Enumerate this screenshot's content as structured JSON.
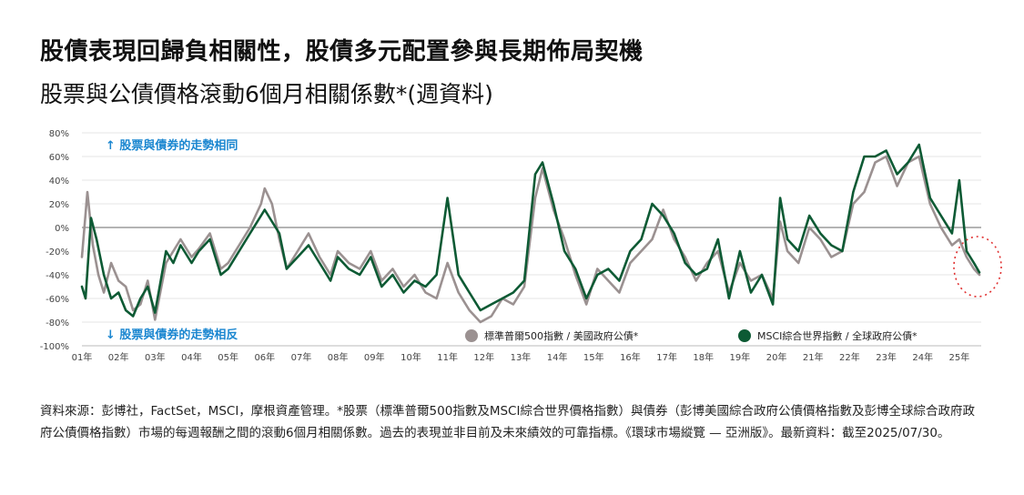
{
  "header": {
    "title": "股債表現回歸負相關性，股債多元配置參與長期佈局契機",
    "subtitle": "股票與公債價格滾動6個月相關係數*(週資料)"
  },
  "colors": {
    "sp500_series": "#9b9191",
    "msci_series": "#0d5a34",
    "up_note": "#1a86d0",
    "down_note": "#1a86d0",
    "highlight_circle": "#e03030",
    "zero_line": "#888888",
    "grid": "#e6e6e6"
  },
  "chart_data": {
    "type": "line",
    "y_tick_labels": [
      "80%",
      "60%",
      "40%",
      "20%",
      "0%",
      "-20%",
      "-40%",
      "-60%",
      "-80%",
      "-100%"
    ],
    "y_ticks": [
      80,
      60,
      40,
      20,
      0,
      -20,
      -40,
      -60,
      -80,
      -100
    ],
    "ylim": [
      -100,
      80
    ],
    "x_tick_labels": [
      "01年",
      "02年",
      "03年",
      "04年",
      "05年",
      "06年",
      "07年",
      "08年",
      "09年",
      "10年",
      "11年",
      "12年",
      "13年",
      "14年",
      "15年",
      "16年",
      "17年",
      "18年",
      "19年",
      "20年",
      "21年",
      "22年",
      "23年",
      "24年",
      "25年"
    ],
    "xlim": [
      2001,
      2025.6
    ],
    "grid": "horizontal",
    "legend_position": "bottom-right",
    "annotations": {
      "up": "↑ 股票與債券的走勢相同",
      "down": "↓ 股票與債券的走勢相反"
    },
    "series": [
      {
        "name": "標準普爾500指數 / 美國政府公債*",
        "x": [
          2001.0,
          2001.15,
          2001.3,
          2001.45,
          2001.6,
          2001.8,
          2002.0,
          2002.2,
          2002.4,
          2002.6,
          2002.8,
          2003.0,
          2003.3,
          2003.5,
          2003.7,
          2004.0,
          2004.2,
          2004.5,
          2004.8,
          2005.0,
          2005.3,
          2005.6,
          2005.9,
          2006.0,
          2006.2,
          2006.4,
          2006.6,
          2006.9,
          2007.2,
          2007.5,
          2007.8,
          2008.0,
          2008.3,
          2008.6,
          2008.9,
          2009.2,
          2009.5,
          2009.8,
          2010.1,
          2010.4,
          2010.7,
          2011.0,
          2011.3,
          2011.6,
          2011.9,
          2012.2,
          2012.5,
          2012.8,
          2013.1,
          2013.4,
          2013.6,
          2013.9,
          2014.2,
          2014.5,
          2014.8,
          2015.1,
          2015.4,
          2015.7,
          2016.0,
          2016.3,
          2016.6,
          2016.9,
          2017.2,
          2017.5,
          2017.8,
          2018.1,
          2018.4,
          2018.7,
          2019.0,
          2019.3,
          2019.6,
          2019.9,
          2020.1,
          2020.3,
          2020.6,
          2020.9,
          2021.2,
          2021.5,
          2021.8,
          2022.1,
          2022.4,
          2022.7,
          2023.0,
          2023.3,
          2023.6,
          2023.9,
          2024.2,
          2024.5,
          2024.8,
          2025.0,
          2025.2,
          2025.4,
          2025.55
        ],
        "values": [
          -25,
          30,
          -15,
          -40,
          -55,
          -30,
          -45,
          -50,
          -70,
          -65,
          -45,
          -78,
          -30,
          -20,
          -10,
          -25,
          -18,
          -5,
          -35,
          -30,
          -15,
          0,
          20,
          33,
          20,
          -10,
          -35,
          -20,
          -5,
          -25,
          -40,
          -20,
          -30,
          -35,
          -20,
          -45,
          -35,
          -50,
          -40,
          -55,
          -60,
          -30,
          -55,
          -70,
          -80,
          -75,
          -60,
          -65,
          -50,
          25,
          50,
          15,
          -10,
          -40,
          -65,
          -35,
          -45,
          -55,
          -30,
          -20,
          -10,
          15,
          -10,
          -25,
          -45,
          -30,
          -20,
          -55,
          -30,
          -45,
          -40,
          -60,
          5,
          -20,
          -30,
          0,
          -10,
          -25,
          -20,
          20,
          30,
          55,
          60,
          35,
          55,
          60,
          20,
          0,
          -15,
          -10,
          -25,
          -35,
          -40
        ]
      },
      {
        "name": "MSCI綜合世界指數 / 全球政府公債*",
        "x": [
          2001.0,
          2001.1,
          2001.25,
          2001.4,
          2001.6,
          2001.8,
          2002.0,
          2002.2,
          2002.4,
          2002.6,
          2002.8,
          2003.0,
          2003.3,
          2003.5,
          2003.7,
          2004.0,
          2004.2,
          2004.5,
          2004.8,
          2005.0,
          2005.3,
          2005.6,
          2005.9,
          2006.0,
          2006.2,
          2006.4,
          2006.6,
          2006.9,
          2007.2,
          2007.5,
          2007.8,
          2008.0,
          2008.3,
          2008.6,
          2008.9,
          2009.2,
          2009.5,
          2009.8,
          2010.1,
          2010.4,
          2010.7,
          2011.0,
          2011.3,
          2011.6,
          2011.9,
          2012.2,
          2012.5,
          2012.8,
          2013.1,
          2013.4,
          2013.6,
          2013.9,
          2014.2,
          2014.5,
          2014.8,
          2015.1,
          2015.4,
          2015.7,
          2016.0,
          2016.3,
          2016.6,
          2016.9,
          2017.2,
          2017.5,
          2017.8,
          2018.1,
          2018.4,
          2018.7,
          2019.0,
          2019.3,
          2019.6,
          2019.9,
          2020.1,
          2020.3,
          2020.6,
          2020.9,
          2021.2,
          2021.5,
          2021.8,
          2022.1,
          2022.4,
          2022.7,
          2023.0,
          2023.3,
          2023.6,
          2023.9,
          2024.2,
          2024.5,
          2024.8,
          2025.0,
          2025.2,
          2025.4,
          2025.55
        ],
        "values": [
          -50,
          -60,
          8,
          -10,
          -40,
          -60,
          -55,
          -70,
          -75,
          -60,
          -50,
          -72,
          -20,
          -30,
          -15,
          -30,
          -20,
          -10,
          -40,
          -35,
          -20,
          -5,
          10,
          15,
          5,
          -5,
          -35,
          -25,
          -15,
          -30,
          -45,
          -25,
          -35,
          -40,
          -25,
          -50,
          -40,
          -55,
          -45,
          -50,
          -40,
          25,
          -40,
          -55,
          -70,
          -65,
          -60,
          -55,
          -45,
          45,
          55,
          20,
          -20,
          -35,
          -60,
          -40,
          -35,
          -45,
          -20,
          -10,
          20,
          10,
          -5,
          -30,
          -40,
          -35,
          -10,
          -60,
          -20,
          -55,
          -40,
          -65,
          25,
          -10,
          -20,
          10,
          -5,
          -15,
          -20,
          30,
          60,
          60,
          65,
          45,
          55,
          70,
          25,
          10,
          -5,
          40,
          -20,
          -30,
          -38
        ]
      }
    ]
  },
  "footer": {
    "source_note": "資料來源：彭博社，FactSet，MSCI，摩根資產管理。*股票（標準普爾500指數及MSCI綜合世界價格指數）與債券（彭博美國綜合政府公債價格指數及彭博全球綜合政府政府公債價格指數）市場的每週報酬之間的滾動6個月相關係數。過去的表現並非目前及未來績效的可靠指標。《環球市場縱覽 — 亞洲版》。最新資料：截至2025/07/30。"
  }
}
